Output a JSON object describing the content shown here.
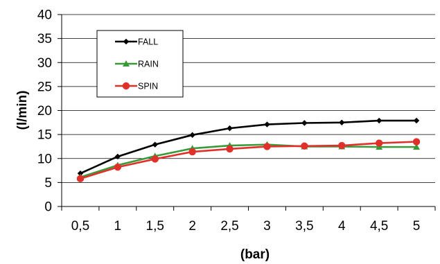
{
  "chart_data": {
    "type": "line",
    "title": "",
    "xlabel": "(bar)",
    "ylabel": "(l/min)",
    "categories": [
      "0,5",
      "1",
      "1,5",
      "2",
      "2,5",
      "3",
      "3,5",
      "4",
      "4,5",
      "5"
    ],
    "ylim": [
      0,
      40
    ],
    "yticks": [
      0,
      5,
      10,
      15,
      20,
      25,
      30,
      35,
      40
    ],
    "grid": "horizontal",
    "legend_position": "top-left",
    "series": [
      {
        "name": "FALL",
        "color": "#000000",
        "marker": "diamond",
        "values": [
          6.9,
          10.4,
          12.9,
          14.9,
          16.3,
          17.1,
          17.4,
          17.5,
          17.9,
          17.9
        ]
      },
      {
        "name": "RAIN",
        "color": "#3a9a3a",
        "marker": "triangle",
        "values": [
          6.1,
          8.6,
          10.5,
          12.1,
          12.7,
          12.9,
          12.5,
          12.5,
          12.4,
          12.4
        ]
      },
      {
        "name": "SPIN",
        "color": "#e0302a",
        "marker": "circle",
        "values": [
          5.8,
          8.2,
          9.9,
          11.4,
          12.0,
          12.5,
          12.6,
          12.7,
          13.2,
          13.5
        ]
      }
    ]
  }
}
